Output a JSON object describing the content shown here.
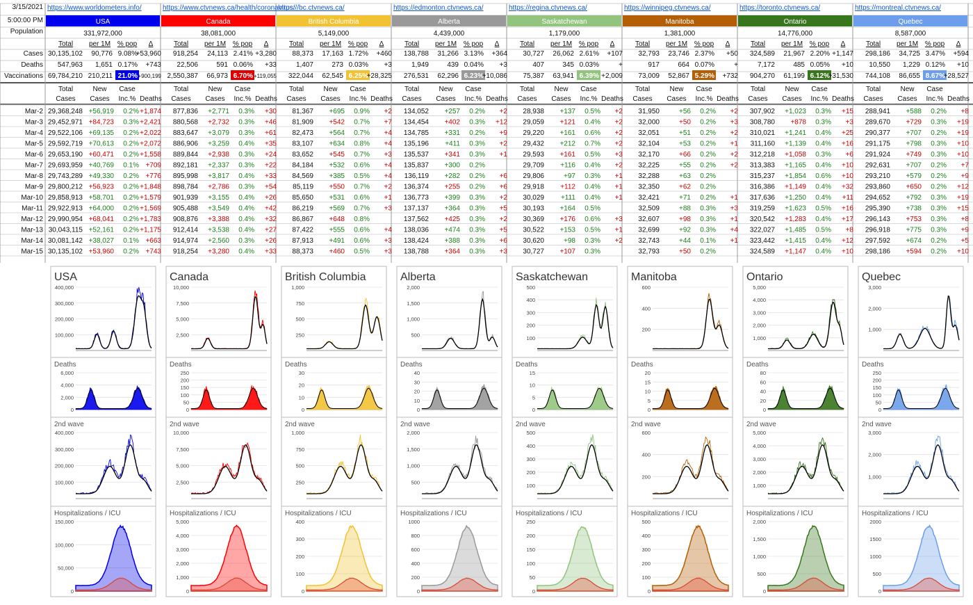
{
  "meta": {
    "date": "3/15/2021",
    "time": "5:00:00 PM",
    "population_label": "Population",
    "cases_label": "Cases",
    "deaths_label": "Deaths",
    "vacc_label": "Vaccinations"
  },
  "sub_headers": [
    "Total",
    "per 1M",
    "% pop",
    "Δ"
  ],
  "daily_headers": [
    [
      "Total",
      "Cases"
    ],
    [
      "New",
      "Cases"
    ],
    [
      "Case",
      "Inc.%"
    ],
    [
      "",
      "Deaths"
    ]
  ],
  "regions": [
    {
      "name": "USA",
      "url": "https://www.worldometers.info/",
      "color": "#0000ee",
      "text": "#ffffff",
      "population": "331,972,000",
      "cases": [
        "30,135,102",
        "90,776",
        "9.08%",
        "+53,960"
      ],
      "deaths": [
        "547,963",
        "1,651",
        "0.17%",
        "+743"
      ],
      "vacc": [
        "69,784,210",
        "210,211",
        "21.0%",
        "+900,199"
      ],
      "vacc_hl": "#0000ee",
      "vacc_hl_text": "#ffffff",
      "chart_titles": {
        "cases": "USA",
        "deaths": "Deaths",
        "wave2": "2nd wave",
        "hosp": "Hospitalizations / ICU"
      },
      "axes": {
        "cases": [
          "400,000",
          "300,000",
          "200,000",
          "100,000"
        ],
        "deaths": [
          "6,000",
          "4,000",
          "2,000",
          "0"
        ],
        "wave2": [
          "400,000",
          "300,000",
          "200,000",
          "100,000"
        ],
        "hosp": [
          "150,000",
          "100,000",
          "50,000",
          "0"
        ]
      }
    },
    {
      "name": "Canada",
      "url": "https://www.ctvnews.ca/health/coronavirus/",
      "color": "#ff0000",
      "text": "#ffffff",
      "population": "38,081,000",
      "cases": [
        "918,254",
        "24,113",
        "2.41%",
        "+3,280"
      ],
      "deaths": [
        "22,506",
        "591",
        "0.06%",
        "+33"
      ],
      "vacc": [
        "2,550,387",
        "66,973",
        "6.70%",
        "+119,055"
      ],
      "vacc_hl": "#e00000",
      "vacc_hl_text": "#ffffff",
      "chart_titles": {
        "cases": "Canada",
        "deaths": "Deaths",
        "wave2": "2nd wave",
        "hosp": "Hospitalizations / ICU"
      },
      "axes": {
        "cases": [
          "10,000",
          "7,500",
          "5,000",
          "2,500"
        ],
        "deaths": [
          "250",
          "200",
          "150",
          "100",
          "50",
          "0"
        ],
        "wave2": [
          "10,000",
          "7,500",
          "5,000",
          "2,500"
        ],
        "hosp": [
          "5,000",
          "4,000",
          "3,000",
          "2,000",
          "1,000",
          "0"
        ]
      }
    },
    {
      "name": "British Columbia",
      "url": "https://bc.ctvnews.ca/",
      "color": "#f1c232",
      "text": "#ffffff",
      "population": "5,149,000",
      "cases": [
        "88,373",
        "17,163",
        "1.72%",
        "+460"
      ],
      "deaths": [
        "1,407",
        "273",
        "0.03%",
        "+3"
      ],
      "vacc": [
        "322,044",
        "62,545",
        "6.25%",
        "+28,325"
      ],
      "vacc_hl": "#f1c232",
      "vacc_hl_text": "#ffffff",
      "chart_titles": {
        "cases": "British Columbia",
        "deaths": "Deaths",
        "wave2": "2nd wave",
        "hosp": "Hospitalizations / ICU"
      },
      "axes": {
        "cases": [
          "1,000",
          "750",
          "500",
          "250"
        ],
        "deaths": [
          "30",
          "20",
          "10",
          "0"
        ],
        "wave2": [
          "1,000",
          "750",
          "500",
          "250"
        ],
        "hosp": [
          "400",
          "300",
          "200",
          "100",
          "0"
        ]
      }
    },
    {
      "name": "Alberta",
      "url": "https://edmonton.ctvnews.ca/",
      "color": "#999999",
      "text": "#ffffff",
      "population": "4,439,000",
      "cases": [
        "138,788",
        "31,266",
        "3.13%",
        "+364"
      ],
      "deaths": [
        "1,949",
        "439",
        "0.04%",
        "+3"
      ],
      "vacc": [
        "276,531",
        "62,296",
        "6.23%",
        "+10,086"
      ],
      "vacc_hl": "#999999",
      "vacc_hl_text": "#ffffff",
      "chart_titles": {
        "cases": "Alberta",
        "deaths": "Deaths",
        "wave2": "2nd wave",
        "hosp": "Hospitalizations / ICU"
      },
      "axes": {
        "cases": [
          "2,000",
          "1,500",
          "1,000",
          "500"
        ],
        "deaths": [
          "40",
          "30",
          "20",
          "10",
          "0"
        ],
        "wave2": [
          "2,000",
          "1,500",
          "1,000",
          "500"
        ],
        "hosp": [
          "1000",
          "800",
          "600",
          "400",
          "200",
          "0"
        ]
      }
    },
    {
      "name": "Saskatchewan",
      "url": "https://regina.ctvnews.ca/",
      "color": "#93c47d",
      "text": "#ffffff",
      "population": "1,179,000",
      "cases": [
        "30,727",
        "26,062",
        "2.61%",
        "+107"
      ],
      "deaths": [
        "407",
        "345",
        "0.03%",
        "+"
      ],
      "vacc": [
        "75,387",
        "63,941",
        "6.39%",
        "+2,009"
      ],
      "vacc_hl": "#93c47d",
      "vacc_hl_text": "#ffffff",
      "chart_titles": {
        "cases": "Saskatchewan",
        "deaths": "Deaths",
        "wave2": "2nd wave",
        "hosp": "Hospitalizations / ICU"
      },
      "axes": {
        "cases": [
          "500",
          "400",
          "300",
          "200",
          "100"
        ],
        "deaths": [
          "15",
          "10",
          "5",
          "0"
        ],
        "wave2": [
          "500",
          "400",
          "300",
          "200",
          "100"
        ],
        "hosp": [
          "250",
          "200",
          "150",
          "100",
          "50",
          "0"
        ]
      }
    },
    {
      "name": "Manitoba",
      "url": "https://winnipeg.ctvnews.ca/",
      "color": "#b45f06",
      "text": "#ffffff",
      "population": "1,381,000",
      "cases": [
        "32,793",
        "23,746",
        "2.37%",
        "+50"
      ],
      "deaths": [
        "917",
        "664",
        "0.07%",
        "+"
      ],
      "vacc": [
        "73,009",
        "52,867",
        "5.29%",
        "+732"
      ],
      "vacc_hl": "#b45f06",
      "vacc_hl_text": "#ffffff",
      "chart_titles": {
        "cases": "Manitoba",
        "deaths": "Deaths",
        "wave2": "2nd wave",
        "hosp": "Hospitalizations / ICU"
      },
      "axes": {
        "cases": [
          "600",
          "400",
          "200"
        ],
        "deaths": [
          "20",
          "15",
          "10",
          "5",
          "0"
        ],
        "wave2": [
          "600",
          "400",
          "200"
        ],
        "hosp": [
          "500",
          "400",
          "300",
          "200",
          "100",
          "0"
        ]
      }
    },
    {
      "name": "Ontario",
      "url": "https://toronto.ctvnews.ca/",
      "color": "#38761d",
      "text": "#ffffff",
      "population": "14,776,000",
      "cases": [
        "324,589",
        "21,967",
        "2.20%",
        "+1,147"
      ],
      "deaths": [
        "7,172",
        "485",
        "0.05%",
        "+10"
      ],
      "vacc": [
        "904,270",
        "61,199",
        "6.12%",
        "+31,530"
      ],
      "vacc_hl": "#38761d",
      "vacc_hl_text": "#ffffff",
      "chart_titles": {
        "cases": "Ontario",
        "deaths": "Deaths",
        "wave2": "2nd wave",
        "hosp": "Hospitalizations / ICU"
      },
      "axes": {
        "cases": [
          "5,000",
          "4,000",
          "3,000",
          "2,000",
          "1,000"
        ],
        "deaths": [
          "80",
          "60",
          "40",
          "20",
          "0"
        ],
        "wave2": [
          "5,000",
          "4,000",
          "3,000",
          "2,000",
          "1,000"
        ],
        "hosp": [
          "2,000",
          "1,500",
          "1,000",
          "500",
          "0"
        ]
      }
    },
    {
      "name": "Quebec",
      "url": "https://montreal.ctvnews.ca/",
      "color": "#6d9eeb",
      "text": "#ffffff",
      "population": "8,587,000",
      "cases": [
        "298,186",
        "34,725",
        "3.47%",
        "+594"
      ],
      "deaths": [
        "10,550",
        "1,229",
        "0.12%",
        "+10"
      ],
      "vacc": [
        "744,108",
        "86,655",
        "8.67%",
        "+28,527"
      ],
      "vacc_hl": "#6d9eeb",
      "vacc_hl_text": "#ffffff",
      "chart_titles": {
        "cases": "Quebec",
        "deaths": "Deaths",
        "wave2": "2nd wave",
        "hosp": "Hospitalizations / ICU"
      },
      "axes": {
        "cases": [
          "3,000",
          "2,000",
          "1,000"
        ],
        "deaths": [
          "250",
          "200",
          "150",
          "100",
          "50",
          "0"
        ],
        "wave2": [
          "3,000",
          "2,000",
          "1,000"
        ],
        "hosp": [
          "2000",
          "1500",
          "1000",
          "500",
          "0"
        ]
      }
    }
  ],
  "dates": [
    "Mar-2",
    "Mar-3",
    "Mar-4",
    "Mar-5",
    "Mar-6",
    "Mar-7",
    "Mar-8",
    "Mar-9",
    "Mar-10",
    "Mar-11",
    "Mar-12",
    "Mar-13",
    "Mar-14",
    "Mar-15"
  ],
  "daily": [
    [
      [
        "29,368,248",
        "+56,919",
        "0.2%",
        "+1,874"
      ],
      [
        "29,452,971",
        "+84,723",
        "0.3%",
        "+2,421"
      ],
      [
        "29,522,106",
        "+69,135",
        "0.2%",
        "+2,022"
      ],
      [
        "29,592,719",
        "+70,613",
        "0.2%",
        "+2,072"
      ],
      [
        "29,653,190",
        "+60,471",
        "0.2%",
        "+1,558"
      ],
      [
        "29,693,959",
        "+40,769",
        "0.1%",
        "+709"
      ],
      [
        "29,743,289",
        "+49,330",
        "0.2%",
        "+776"
      ],
      [
        "29,800,212",
        "+56,923",
        "0.2%",
        "+1,848"
      ],
      [
        "29,858,913",
        "+58,701",
        "0.2%",
        "+1,579"
      ],
      [
        "29,922,913",
        "+64,000",
        "0.2%",
        "+1,569"
      ],
      [
        "29,990,954",
        "+68,041",
        "0.2%",
        "+1,783"
      ],
      [
        "30,043,115",
        "+52,161",
        "0.2%",
        "+1,175"
      ],
      [
        "30,081,142",
        "+38,027",
        "0.1%",
        "+663"
      ],
      [
        "30,135,102",
        "+53,960",
        "0.2%",
        "+743"
      ]
    ],
    [
      [
        "877,836",
        "+2,771",
        "0.3%",
        "+30"
      ],
      [
        "880,568",
        "+2,732",
        "0.3%",
        "+46"
      ],
      [
        "883,647",
        "+3,079",
        "0.3%",
        "+61"
      ],
      [
        "886,906",
        "+3,259",
        "0.4%",
        "+35"
      ],
      [
        "889,844",
        "+2,938",
        "0.3%",
        "+24"
      ],
      [
        "892,181",
        "+2,337",
        "0.3%",
        "+22"
      ],
      [
        "895,998",
        "+3,817",
        "0.4%",
        "+33"
      ],
      [
        "898,784",
        "+2,786",
        "0.3%",
        "+54"
      ],
      [
        "901,939",
        "+3,155",
        "0.4%",
        "+26"
      ],
      [
        "905,488",
        "+3,549",
        "0.4%",
        "+42"
      ],
      [
        "908,876",
        "+3,388",
        "0.4%",
        "+32"
      ],
      [
        "912,414",
        "+3,538",
        "0.4%",
        "+27"
      ],
      [
        "914,974",
        "+2,560",
        "0.3%",
        "+26"
      ],
      [
        "918,254",
        "+3,280",
        "0.4%",
        "+33"
      ]
    ],
    [
      [
        "81,367",
        "+695",
        "0.9%",
        "+2"
      ],
      [
        "81,909",
        "+542",
        "0.7%",
        "+7"
      ],
      [
        "82,473",
        "+564",
        "0.7%",
        "+4"
      ],
      [
        "83,107",
        "+634",
        "0.8%",
        "+4"
      ],
      [
        "83,652",
        "+545",
        "0.7%",
        "+3"
      ],
      [
        "84,184",
        "+532",
        "0.6%",
        "+4"
      ],
      [
        "84,569",
        "+385",
        "0.5%",
        "+4"
      ],
      [
        "85,119",
        "+550",
        "0.7%",
        "+2"
      ],
      [
        "85,650",
        "+531",
        "0.6%",
        "+1"
      ],
      [
        "86,219",
        "+569",
        "0.7%",
        "+3"
      ],
      [
        "86,867",
        "+648",
        "0.8%",
        ""
      ],
      [
        "87,422",
        "+555",
        "0.6%",
        "+4"
      ],
      [
        "87,913",
        "+491",
        "0.6%",
        "+3"
      ],
      [
        "88,373",
        "+460",
        "0.5%",
        "+3"
      ]
    ],
    [
      [
        "134,052",
        "+257",
        "0.2%",
        "+2"
      ],
      [
        "134,454",
        "+402",
        "0.3%",
        "+12"
      ],
      [
        "134,785",
        "+331",
        "0.2%",
        "+9"
      ],
      [
        "135,196",
        "+411",
        "0.3%",
        "+2"
      ],
      [
        "135,537",
        "+341",
        "0.3%",
        "+1"
      ],
      [
        "135,837",
        "+300",
        "0.2%",
        ""
      ],
      [
        "136,119",
        "+282",
        "0.2%",
        "+6"
      ],
      [
        "136,374",
        "+255",
        "0.2%",
        "+6"
      ],
      [
        "136,773",
        "+399",
        "0.3%",
        "+2"
      ],
      [
        "137,137",
        "+364",
        "0.3%",
        "+5"
      ],
      [
        "137,562",
        "+425",
        "0.3%",
        "+2"
      ],
      [
        "138,036",
        "+474",
        "0.3%",
        "+5"
      ],
      [
        "138,424",
        "+388",
        "0.3%",
        "+6"
      ],
      [
        "138,788",
        "+364",
        "0.3%",
        "+3"
      ]
    ],
    [
      [
        "28,938",
        "+137",
        "0.5%",
        "+2"
      ],
      [
        "29,059",
        "+121",
        "0.4%",
        "+2"
      ],
      [
        "29,220",
        "+161",
        "0.6%",
        "+2"
      ],
      [
        "29,432",
        "+212",
        "0.7%",
        "+2"
      ],
      [
        "29,593",
        "+161",
        "0.5%",
        "+3"
      ],
      [
        "29,709",
        "+116",
        "0.4%",
        "+2"
      ],
      [
        "29,806",
        "+97",
        "0.3%",
        "+1"
      ],
      [
        "29,918",
        "+112",
        "0.4%",
        "+1"
      ],
      [
        "30,029",
        "+111",
        "0.4%",
        "+1"
      ],
      [
        "30,193",
        "+164",
        "0.5%",
        ""
      ],
      [
        "30,369",
        "+176",
        "0.6%",
        "+3"
      ],
      [
        "30,522",
        "+153",
        "0.5%",
        "+1"
      ],
      [
        "30,620",
        "+98",
        "0.3%",
        "+2"
      ],
      [
        "30,727",
        "+107",
        "0.3%",
        ""
      ]
    ],
    [
      [
        "31,950",
        "+56",
        "0.2%",
        "+2"
      ],
      [
        "32,000",
        "+50",
        "0.2%",
        "+3"
      ],
      [
        "32,051",
        "+51",
        "0.2%",
        "+2"
      ],
      [
        "32,104",
        "+53",
        "0.2%",
        "+1"
      ],
      [
        "32,170",
        "+66",
        "0.2%",
        "+2"
      ],
      [
        "32,225",
        "+55",
        "0.2%",
        "+2"
      ],
      [
        "32,288",
        "+63",
        "0.2%",
        ""
      ],
      [
        "32,350",
        "+62",
        "0.2%",
        ""
      ],
      [
        "32,421",
        "+71",
        "0.2%",
        "+1"
      ],
      [
        "32,509",
        "+88",
        "0.3%",
        "+3"
      ],
      [
        "32,607",
        "+98",
        "0.3%",
        "+1"
      ],
      [
        "32,699",
        "+92",
        "0.3%",
        "+4"
      ],
      [
        "32,743",
        "+44",
        "0.1%",
        "+1"
      ],
      [
        "32,793",
        "+50",
        "0.2%",
        ""
      ]
    ],
    [
      [
        "307,902",
        "+1,023",
        "0.3%",
        "+15"
      ],
      [
        "308,780",
        "+878",
        "0.3%",
        "+3"
      ],
      [
        "310,021",
        "+1,241",
        "0.4%",
        "+25"
      ],
      [
        "311,160",
        "+1,139",
        "0.4%",
        "+16"
      ],
      [
        "312,218",
        "+1,058",
        "0.3%",
        "+6"
      ],
      [
        "313,383",
        "+1,165",
        "0.4%",
        "+10"
      ],
      [
        "315,237",
        "+1,854",
        "0.6%",
        "+10"
      ],
      [
        "316,386",
        "+1,149",
        "0.4%",
        "+32"
      ],
      [
        "317,636",
        "+1,250",
        "0.4%",
        "+11"
      ],
      [
        "319,259",
        "+1,623",
        "0.5%",
        "+16"
      ],
      [
        "320,542",
        "+1,283",
        "0.4%",
        "+17"
      ],
      [
        "322,027",
        "+1,485",
        "0.5%",
        "+8"
      ],
      [
        "323,442",
        "+1,415",
        "0.4%",
        "+12"
      ],
      [
        "324,589",
        "+1,147",
        "0.4%",
        "+10"
      ]
    ],
    [
      [
        "288,941",
        "+588",
        "0.2%",
        "+8"
      ],
      [
        "289,670",
        "+729",
        "0.3%",
        "+19"
      ],
      [
        "290,377",
        "+707",
        "0.2%",
        "+19"
      ],
      [
        "291,175",
        "+798",
        "0.3%",
        "+10"
      ],
      [
        "291,924",
        "+749",
        "0.3%",
        "+10"
      ],
      [
        "292,631",
        "+707",
        "0.2%",
        "+7"
      ],
      [
        "293,210",
        "+579",
        "0.2%",
        "+9"
      ],
      [
        "293,860",
        "+650",
        "0.2%",
        "+12"
      ],
      [
        "294,652",
        "+792",
        "0.3%",
        "+19"
      ],
      [
        "295,390",
        "+738",
        "0.3%",
        "+15"
      ],
      [
        "296,143",
        "+753",
        "0.3%",
        "+8"
      ],
      [
        "296,918",
        "+775",
        "0.3%",
        "+9"
      ],
      [
        "297,592",
        "+674",
        "0.2%",
        "+5"
      ],
      [
        "298,186",
        "+594",
        "0.2%",
        "+10"
      ]
    ]
  ]
}
